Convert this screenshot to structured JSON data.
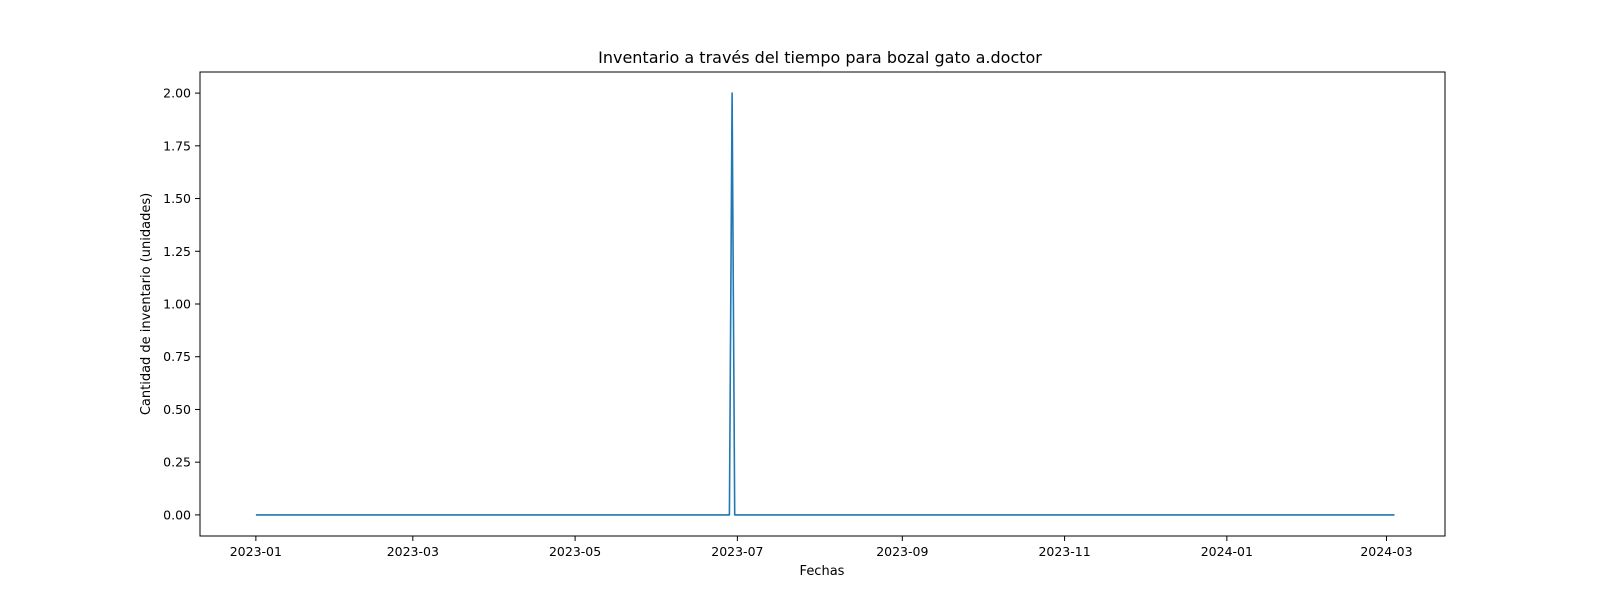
{
  "chart_data": {
    "type": "line",
    "title": "Inventario a través del tiempo para bozal gato a.doctor",
    "xlabel": "Fechas",
    "ylabel": "Cantidad de inventario (unidades)",
    "x_type": "date",
    "xlim": [
      "2022-12-11",
      "2024-03-23"
    ],
    "ylim": [
      -0.1,
      2.1
    ],
    "x_ticks": [
      {
        "value": "2023-01-01",
        "label": "2023-01"
      },
      {
        "value": "2023-03-01",
        "label": "2023-03"
      },
      {
        "value": "2023-05-01",
        "label": "2023-05"
      },
      {
        "value": "2023-07-01",
        "label": "2023-07"
      },
      {
        "value": "2023-09-01",
        "label": "2023-09"
      },
      {
        "value": "2023-11-01",
        "label": "2023-11"
      },
      {
        "value": "2024-01-01",
        "label": "2024-01"
      },
      {
        "value": "2024-03-01",
        "label": "2024-03"
      }
    ],
    "y_ticks": [
      {
        "value": 0.0,
        "label": "0.00"
      },
      {
        "value": 0.25,
        "label": "0.25"
      },
      {
        "value": 0.5,
        "label": "0.50"
      },
      {
        "value": 0.75,
        "label": "0.75"
      },
      {
        "value": 1.0,
        "label": "1.00"
      },
      {
        "value": 1.25,
        "label": "1.25"
      },
      {
        "value": 1.5,
        "label": "1.50"
      },
      {
        "value": 1.75,
        "label": "1.75"
      },
      {
        "value": 2.0,
        "label": "2.00"
      }
    ],
    "grid": false,
    "series": [
      {
        "color": "#1f77b4",
        "x": [
          "2023-01-01",
          "2023-06-28",
          "2023-06-29",
          "2023-06-30",
          "2024-03-04"
        ],
        "y": [
          0,
          0,
          2,
          0,
          0
        ]
      }
    ]
  }
}
